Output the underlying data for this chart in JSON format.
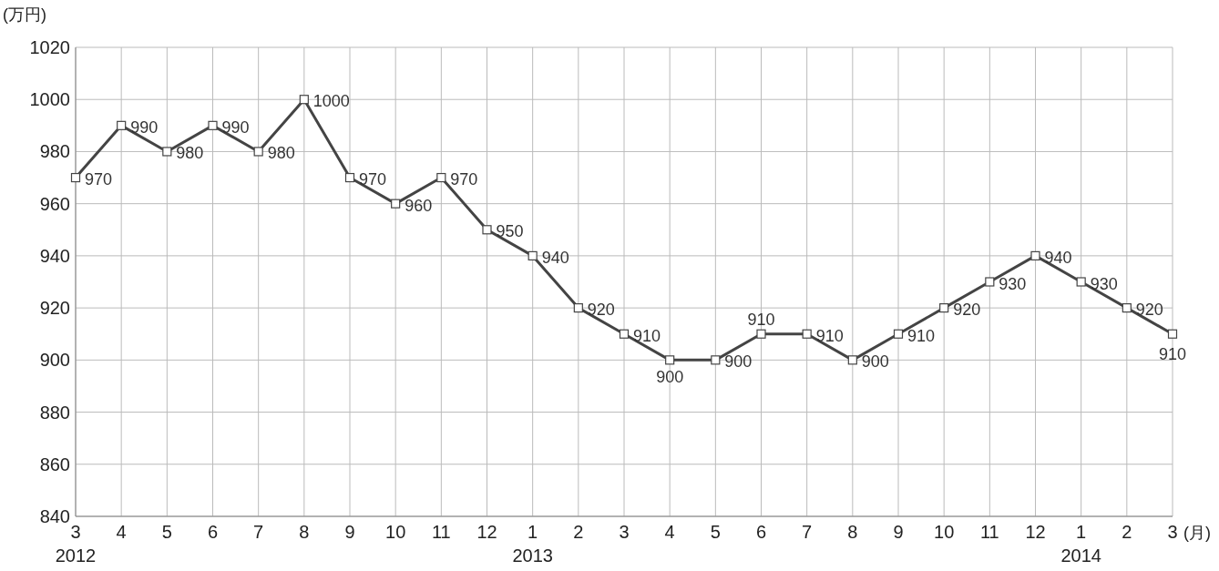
{
  "chart_data": {
    "type": "line",
    "ylabel": "(万円)",
    "xlabel": "(月)",
    "categories": [
      "3\n2012",
      "4",
      "5",
      "6",
      "7",
      "8",
      "9",
      "10",
      "11",
      "12",
      "1\n2013",
      "2",
      "3",
      "4",
      "5",
      "6",
      "7",
      "8",
      "9",
      "10",
      "11",
      "12",
      "1\n2014",
      "2",
      "3"
    ],
    "series": [
      {
        "color": "#444444",
        "values": [
          970,
          990,
          980,
          990,
          980,
          1000,
          970,
          960,
          970,
          950,
          940,
          920,
          910,
          900,
          900,
          910,
          910,
          900,
          910,
          920,
          930,
          940,
          930,
          920,
          910
        ]
      }
    ],
    "ylim": [
      840,
      1020
    ],
    "yticks": [
      840,
      860,
      880,
      900,
      920,
      940,
      960,
      980,
      1000,
      1020
    ],
    "grid": true,
    "marker": "square",
    "line_style": "solid",
    "data_labels": true
  }
}
